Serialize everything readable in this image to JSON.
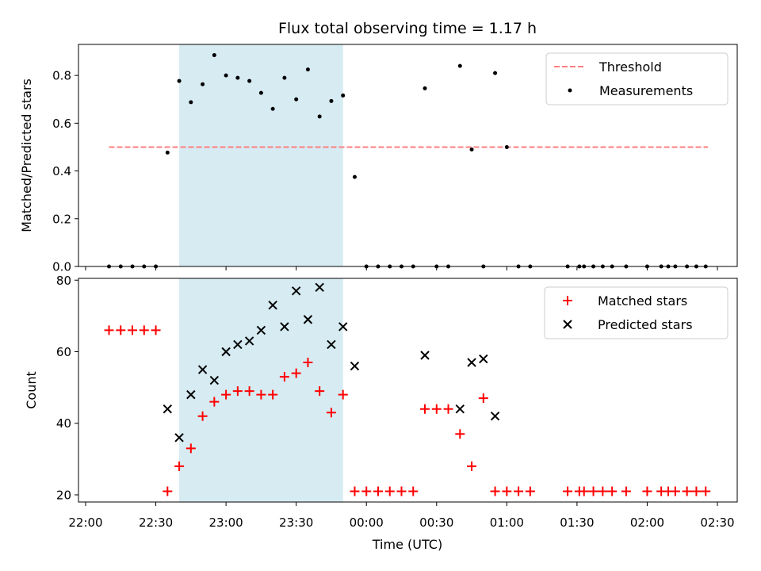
{
  "colors": {
    "threshold": "#ff7f7f",
    "measurement": "#000000",
    "matched": "#ff0000",
    "predicted": "#000000",
    "span": "#add8e6"
  },
  "chart_data": [
    {
      "type": "scatter",
      "title": "Flux total observing time = 1.17 h",
      "ylabel": "Matched/Predicted stars",
      "xlabel": "",
      "ylim": [
        0,
        0.93
      ],
      "yticks": [
        "0.0",
        "0.2",
        "0.4",
        "0.6",
        "0.8"
      ],
      "grid": false,
      "legend": "top-right",
      "shaded_span": {
        "x": [
          "22:40",
          "23:50"
        ]
      },
      "threshold": {
        "name": "Threshold",
        "y": 0.5,
        "x": [
          "22:10",
          "02:26"
        ]
      },
      "series": [
        {
          "name": "Measurements",
          "x": [
            "22:10",
            "22:15",
            "22:20",
            "22:25",
            "22:30",
            "22:35",
            "22:40",
            "22:45",
            "22:50",
            "22:55",
            "23:00",
            "23:05",
            "23:10",
            "23:15",
            "23:20",
            "23:25",
            "23:30",
            "23:35",
            "23:40",
            "23:45",
            "23:50",
            "23:55",
            "00:00",
            "00:05",
            "00:10",
            "00:15",
            "00:20",
            "00:25",
            "00:30",
            "00:35",
            "00:40",
            "00:45",
            "00:50",
            "00:55",
            "01:00",
            "01:05",
            "01:10",
            "01:26",
            "01:31",
            "01:33",
            "01:37",
            "01:41",
            "01:45",
            "01:51",
            "02:00",
            "02:06",
            "02:09",
            "02:12",
            "02:17",
            "02:21",
            "02:25"
          ],
          "y": [
            0,
            0,
            0,
            0,
            0,
            0.477,
            0.777,
            0.688,
            0.763,
            0.885,
            0.8,
            0.79,
            0.777,
            0.727,
            0.66,
            0.79,
            0.7,
            0.825,
            0.628,
            0.693,
            0.716,
            0.375,
            0,
            0,
            0,
            0,
            0,
            0.746,
            0,
            0,
            0.84,
            0.49,
            0,
            0.81,
            0.5,
            0,
            0,
            0,
            0,
            0,
            0,
            0,
            0,
            0,
            0,
            0,
            0,
            0,
            0,
            0,
            0
          ]
        }
      ]
    },
    {
      "type": "scatter",
      "title": "",
      "xlabel": "Time (UTC)",
      "ylabel": "Count",
      "ylim": [
        18,
        80.5
      ],
      "yticks": [
        "20",
        "40",
        "60",
        "80"
      ],
      "xticks": [
        "22:00",
        "22:30",
        "23:00",
        "23:30",
        "00:00",
        "00:30",
        "01:00",
        "01:30",
        "02:00",
        "02:30"
      ],
      "grid": false,
      "legend": "top-right",
      "shaded_span": {
        "x": [
          "22:40",
          "23:50"
        ]
      },
      "series": [
        {
          "name": "Matched stars",
          "x": [
            "22:10",
            "22:15",
            "22:20",
            "22:25",
            "22:30",
            "22:35",
            "22:40",
            "22:45",
            "22:50",
            "22:55",
            "23:00",
            "23:05",
            "23:10",
            "23:15",
            "23:20",
            "23:25",
            "23:30",
            "23:35",
            "23:40",
            "23:45",
            "23:50",
            "23:55",
            "00:00",
            "00:05",
            "00:10",
            "00:15",
            "00:20",
            "00:25",
            "00:30",
            "00:35",
            "00:40",
            "00:45",
            "00:50",
            "00:55",
            "01:00",
            "01:05",
            "01:10",
            "01:26",
            "01:31",
            "01:33",
            "01:37",
            "01:41",
            "01:45",
            "01:51",
            "02:00",
            "02:06",
            "02:09",
            "02:12",
            "02:17",
            "02:21",
            "02:25"
          ],
          "y": [
            66,
            66,
            66,
            66,
            66,
            21,
            28,
            33,
            42,
            46,
            48,
            49,
            49,
            48,
            48,
            53,
            54,
            57,
            49,
            43,
            48,
            21,
            21,
            21,
            21,
            21,
            21,
            44,
            44,
            44,
            37,
            28,
            47,
            21,
            21,
            21,
            21,
            21,
            21,
            21,
            21,
            21,
            21,
            21,
            21,
            21,
            21,
            21,
            21,
            21,
            21
          ]
        },
        {
          "name": "Predicted stars",
          "x": [
            "22:35",
            "22:40",
            "22:45",
            "22:50",
            "22:55",
            "23:00",
            "23:05",
            "23:10",
            "23:15",
            "23:20",
            "23:25",
            "23:30",
            "23:35",
            "23:40",
            "23:45",
            "23:50",
            "23:55",
            "00:25",
            "00:40",
            "00:45",
            "00:50",
            "00:55"
          ],
          "y": [
            44,
            36,
            48,
            55,
            52,
            60,
            62,
            63,
            66,
            73,
            67,
            77,
            69,
            78,
            62,
            67,
            56,
            59,
            44,
            57,
            58,
            42
          ]
        }
      ]
    }
  ]
}
